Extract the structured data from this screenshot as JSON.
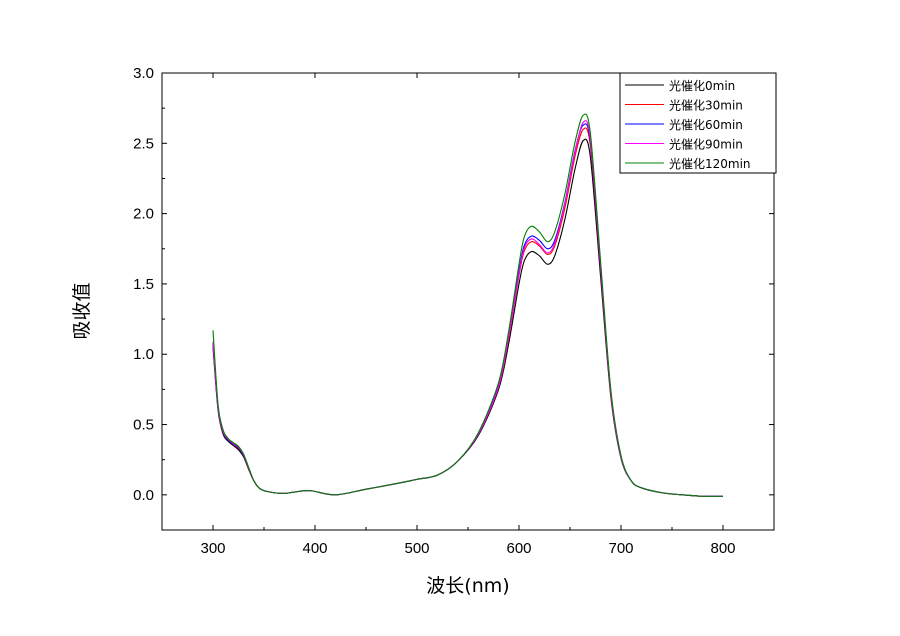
{
  "chart_data": {
    "type": "line",
    "xlabel": "波长(nm)",
    "ylabel": "吸收值",
    "xlim": [
      250,
      850
    ],
    "ylim": [
      -0.25,
      3.0
    ],
    "x_ticks": [
      "300",
      "400",
      "500",
      "600",
      "700",
      "800"
    ],
    "y_ticks": [
      "0.0",
      "0.5",
      "1.0",
      "1.5",
      "2.0",
      "2.5",
      "3.0"
    ],
    "grid": false,
    "legend_position": "top-right",
    "x": [
      300,
      305,
      310,
      315,
      320,
      325,
      330,
      335,
      340,
      345,
      350,
      360,
      370,
      380,
      395,
      420,
      450,
      480,
      500,
      520,
      540,
      560,
      580,
      590,
      600,
      605,
      612,
      620,
      628,
      635,
      645,
      655,
      663,
      670,
      680,
      690,
      700,
      710,
      720,
      740,
      760,
      780,
      800
    ],
    "series": [
      {
        "name": "光催化0min",
        "color": "#000000",
        "values": [
          1.05,
          0.6,
          0.43,
          0.38,
          0.35,
          0.32,
          0.27,
          0.18,
          0.1,
          0.05,
          0.03,
          0.015,
          0.01,
          0.02,
          0.03,
          0.0,
          0.04,
          0.08,
          0.11,
          0.14,
          0.24,
          0.42,
          0.75,
          1.08,
          1.5,
          1.66,
          1.73,
          1.7,
          1.64,
          1.7,
          1.96,
          2.32,
          2.52,
          2.4,
          1.55,
          0.7,
          0.26,
          0.1,
          0.05,
          0.015,
          0.0,
          -0.01,
          -0.01
        ]
      },
      {
        "name": "光催化30min",
        "color": "#ff0000",
        "values": [
          1.07,
          0.61,
          0.44,
          0.39,
          0.36,
          0.33,
          0.28,
          0.185,
          0.1,
          0.05,
          0.03,
          0.015,
          0.01,
          0.02,
          0.03,
          0.0,
          0.04,
          0.08,
          0.11,
          0.14,
          0.24,
          0.43,
          0.77,
          1.12,
          1.56,
          1.73,
          1.8,
          1.77,
          1.71,
          1.77,
          2.04,
          2.41,
          2.6,
          2.48,
          1.6,
          0.72,
          0.27,
          0.1,
          0.05,
          0.015,
          0.0,
          -0.01,
          -0.01
        ]
      },
      {
        "name": "光催化60min",
        "color": "#0000ff",
        "values": [
          1.08,
          0.615,
          0.445,
          0.39,
          0.36,
          0.335,
          0.28,
          0.19,
          0.1,
          0.05,
          0.03,
          0.015,
          0.01,
          0.02,
          0.03,
          0.0,
          0.04,
          0.08,
          0.11,
          0.14,
          0.24,
          0.43,
          0.78,
          1.14,
          1.59,
          1.77,
          1.84,
          1.81,
          1.75,
          1.81,
          2.08,
          2.45,
          2.63,
          2.51,
          1.62,
          0.73,
          0.27,
          0.1,
          0.05,
          0.015,
          0.0,
          -0.01,
          -0.01
        ]
      },
      {
        "name": "光催化90min",
        "color": "#ff00ff",
        "values": [
          1.09,
          0.62,
          0.45,
          0.395,
          0.365,
          0.34,
          0.285,
          0.19,
          0.1,
          0.05,
          0.03,
          0.015,
          0.01,
          0.02,
          0.03,
          0.0,
          0.04,
          0.08,
          0.11,
          0.14,
          0.24,
          0.43,
          0.77,
          1.13,
          1.57,
          1.75,
          1.82,
          1.78,
          1.72,
          1.79,
          2.07,
          2.44,
          2.65,
          2.53,
          1.63,
          0.73,
          0.27,
          0.1,
          0.05,
          0.015,
          0.0,
          -0.01,
          -0.01
        ]
      },
      {
        "name": "光催化120min",
        "color": "#008000",
        "values": [
          1.17,
          0.64,
          0.46,
          0.4,
          0.37,
          0.345,
          0.29,
          0.195,
          0.1,
          0.05,
          0.03,
          0.015,
          0.01,
          0.02,
          0.03,
          0.0,
          0.04,
          0.08,
          0.11,
          0.14,
          0.24,
          0.44,
          0.8,
          1.17,
          1.64,
          1.83,
          1.91,
          1.87,
          1.8,
          1.87,
          2.14,
          2.51,
          2.7,
          2.57,
          1.66,
          0.75,
          0.28,
          0.1,
          0.05,
          0.015,
          0.0,
          -0.01,
          -0.01
        ]
      }
    ]
  }
}
